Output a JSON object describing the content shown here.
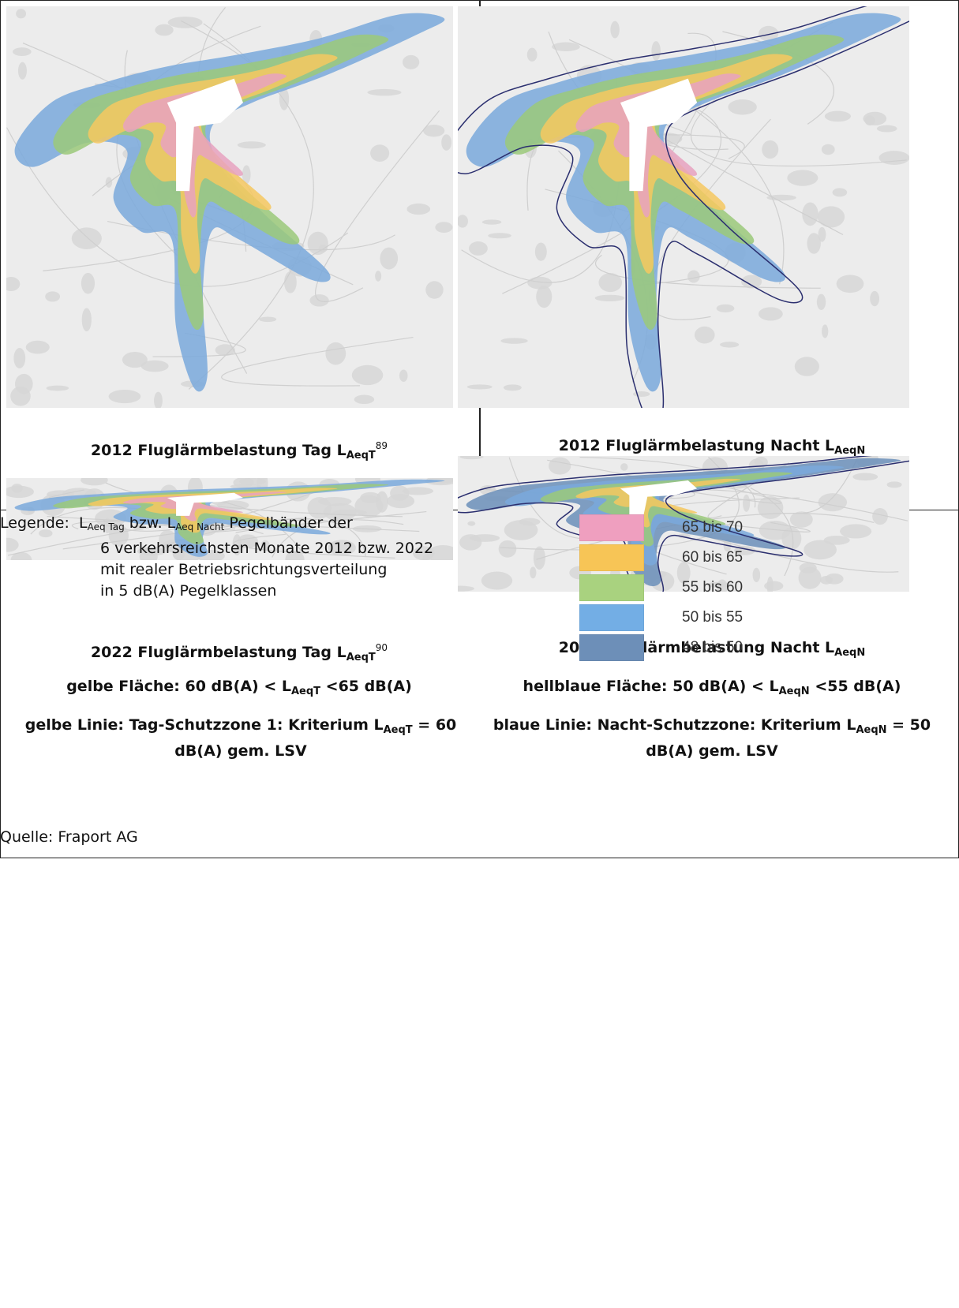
{
  "maps": [
    {
      "id": "2012-day",
      "caption": {
        "prefix": "2012 Fluglärmbelastung Tag L",
        "sub": "AeqT",
        "sup": "89"
      },
      "layers": [
        "#7aa9dc",
        "#9bc97a",
        "#f6c860",
        "#e8a2c0"
      ],
      "outline": false
    },
    {
      "id": "2012-night",
      "caption": {
        "prefix": "2012 Fluglärmbelastung Nacht L",
        "sub": "AeqN",
        "sup": ""
      },
      "layers": [
        "#7aa9dc",
        "#9bc97a",
        "#f6c860",
        "#e8a2c0"
      ],
      "outline": true
    },
    {
      "id": "2022-day",
      "caption": {
        "prefix": "2022 Fluglärmbelastung Tag L",
        "sub": "AeqT",
        "sup": "90"
      },
      "layers": [
        "#7aa9dc",
        "#9bc97a",
        "#f6c860",
        "#e8a2c0"
      ],
      "outline": false
    },
    {
      "id": "2022-night",
      "caption": {
        "prefix": "2022 Fluglärmbelastung Nacht L",
        "sub": "AeqN",
        "sup": ""
      },
      "layers": [
        "#6b8fba",
        "#7aa9dc",
        "#9bc97a",
        "#f6c860"
      ],
      "outline": true
    }
  ],
  "notes": {
    "day_area": {
      "prefix": "gelbe Fläche: 60 dB(A) < L",
      "sub": "AeqT",
      "suffix": " <65 dB(A)"
    },
    "night_area": {
      "prefix": "hellblaue Fläche: 50 dB(A) < L",
      "sub": "AeqN",
      "suffix": " <55 dB(A)"
    },
    "day_line": {
      "prefix": "gelbe Linie: Tag-Schutzzone 1: Kriterium L",
      "sub": "AeqT",
      "suffix": " = 60 dB(A) gem. LSV"
    },
    "night_line": {
      "prefix": "blaue Linie: Nacht-Schutzzone: Kriterium L",
      "sub": "AeqN",
      "suffix": " = 50 dB(A) gem. LSV"
    }
  },
  "legend": {
    "label": "Legende:",
    "l1": "L",
    "sub1": "Aeq Tag",
    "mid": " bzw. L",
    "sub2": "Aeq Nacht",
    "end": " Pegelbänder der",
    "line2": "6 verkehrsreichsten Monate 2012 bzw. 2022",
    "line3": "mit realer Betriebsrichtungsverteilung",
    "line4": "in 5 dB(A) Pegelklassen",
    "items": [
      {
        "label": "65 bis 70",
        "color": "#ef9fbf"
      },
      {
        "label": "60 bis 65",
        "color": "#f7c556"
      },
      {
        "label": "55 bis 60",
        "color": "#a9d27f"
      },
      {
        "label": "50 bis 55",
        "color": "#73aee5"
      },
      {
        "label": "48 bis 50",
        "color": "#6d8fb8"
      }
    ]
  },
  "source": "Quelle: Fraport AG",
  "outline_color": "#2b2f6f"
}
